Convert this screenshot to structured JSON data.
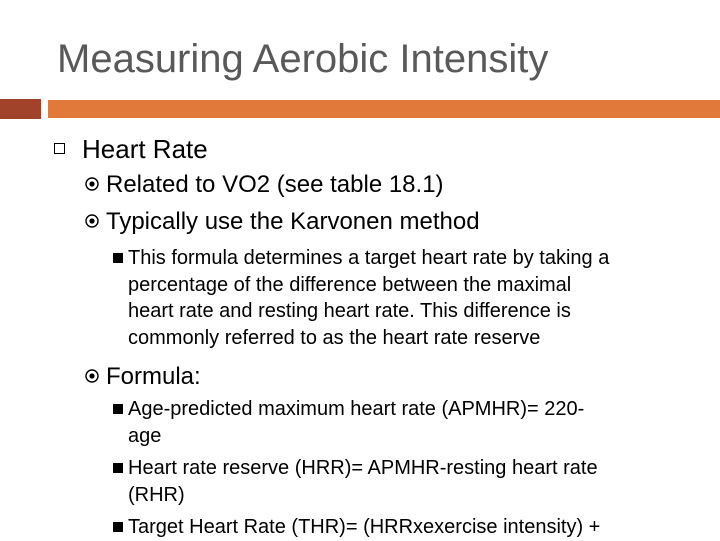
{
  "slide": {
    "title": "Measuring Aerobic Intensity",
    "accent_colors": {
      "bar_dark": "#a0432a",
      "bar_light": "#e0793a"
    },
    "bullets": {
      "heart_rate": "Heart Rate",
      "related": "Related to VO2 (see table 18.1)",
      "karvonen": "Typically use the Karvonen method",
      "karvonen_detail": {
        "line1": "This formula determines a target heart rate by taking a",
        "line2": "percentage of the difference between the maximal",
        "line3": "heart rate and resting heart rate. This difference is",
        "line4": "commonly referred to as the heart rate reserve"
      },
      "formula": "Formula:",
      "apmhr": {
        "line1": "Age-predicted maximum heart rate (APMHR)= 220-",
        "line2": "age"
      },
      "hrr": {
        "line1": "Heart rate reserve (HRR)= APMHR-resting heart rate",
        "line2": "(RHR)"
      },
      "thr": {
        "line1": "Target Heart Rate (THR)= (HRRxexercise intensity) +"
      }
    }
  }
}
